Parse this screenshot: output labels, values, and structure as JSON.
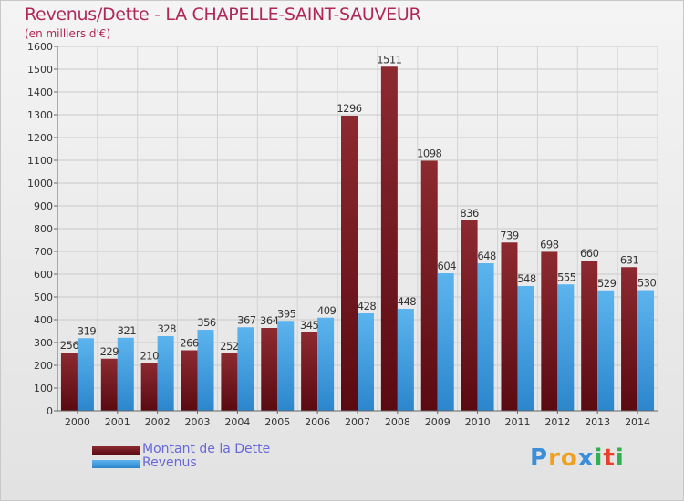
{
  "chart_data": {
    "type": "bar",
    "title": "Revenus/Dette - LA CHAPELLE-SAINT-SAUVEUR",
    "subtitle": "(en milliers d'€)",
    "categories": [
      "2000",
      "2001",
      "2002",
      "2003",
      "2004",
      "2005",
      "2006",
      "2007",
      "2008",
      "2009",
      "2010",
      "2011",
      "2012",
      "2013",
      "2014"
    ],
    "series": [
      {
        "name": "Montant de la Dette",
        "color": "#7a1a22",
        "values": [
          256,
          229,
          210,
          266,
          252,
          364,
          345,
          1296,
          1511,
          1098,
          836,
          739,
          698,
          660,
          631
        ]
      },
      {
        "name": "Revenus",
        "color": "#3e9ee0",
        "values": [
          319,
          321,
          328,
          356,
          367,
          395,
          409,
          428,
          448,
          604,
          648,
          548,
          555,
          529,
          530
        ]
      }
    ],
    "ylim": [
      0,
      1600
    ],
    "yticks": [
      0,
      100,
      200,
      300,
      400,
      500,
      600,
      700,
      800,
      900,
      1000,
      1100,
      1200,
      1300,
      1400,
      1500,
      1600
    ],
    "grid": true,
    "legend": "bottom-left"
  },
  "logo": {
    "letters": [
      "P",
      "r",
      "o",
      "x",
      "i",
      "t",
      "i"
    ],
    "colors": [
      "#3a8fd8",
      "#f0a020",
      "#f0a020",
      "#3a8fd8",
      "#30b050",
      "#e8402a",
      "#30b050"
    ]
  }
}
